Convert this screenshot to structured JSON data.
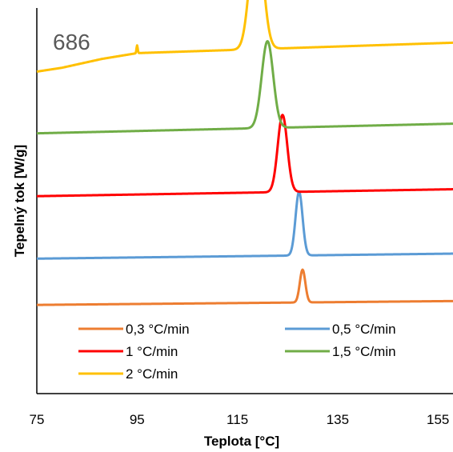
{
  "chart_data": {
    "type": "line",
    "annotation": "686",
    "xlabel": "Teplota [°C]",
    "ylabel": "Tepelný tok [W/g]",
    "xlim": [
      75,
      158
    ],
    "xticks": [
      75,
      95,
      115,
      135,
      155
    ],
    "ylim": [
      0,
      10
    ],
    "grid": false,
    "y_tick_labels": false,
    "legend_position": "bottom-left inside plot",
    "series": [
      {
        "name": "0,3 °C/min",
        "color": "#ED7D31",
        "baseline": [
          [
            75,
            2.3
          ],
          [
            158,
            2.4
          ]
        ],
        "peaks": [
          {
            "x": 128.0,
            "height": 0.85,
            "width": 0.55
          }
        ]
      },
      {
        "name": "0,5 °C/min",
        "color": "#5B9BD5",
        "baseline": [
          [
            75,
            3.5
          ],
          [
            158,
            3.63
          ]
        ],
        "peaks": [
          {
            "x": 127.3,
            "height": 1.65,
            "width": 0.7
          }
        ]
      },
      {
        "name": "1 °C/min",
        "color": "#FF0000",
        "baseline": [
          [
            75,
            5.12
          ],
          [
            158,
            5.3
          ]
        ],
        "peaks": [
          {
            "x": 124.0,
            "height": 2.0,
            "width": 0.95
          }
        ]
      },
      {
        "name": "1,5 °C/min",
        "color": "#70AD47",
        "baseline": [
          [
            75,
            6.75
          ],
          [
            158,
            7.0
          ]
        ],
        "peaks": [
          {
            "x": 121.0,
            "height": 2.25,
            "width": 1.15
          }
        ]
      },
      {
        "name": "2 °C/min",
        "color": "#FFC000",
        "baseline": [
          [
            75,
            8.35
          ],
          [
            80,
            8.45
          ],
          [
            88,
            8.68
          ],
          [
            95,
            8.83
          ],
          [
            158,
            9.1
          ]
        ],
        "peaks": [
          {
            "x": 118.8,
            "height": 3.2,
            "width": 1.3
          }
        ],
        "spikes": [
          {
            "x": 95.0,
            "height": 0.2
          }
        ]
      }
    ]
  }
}
